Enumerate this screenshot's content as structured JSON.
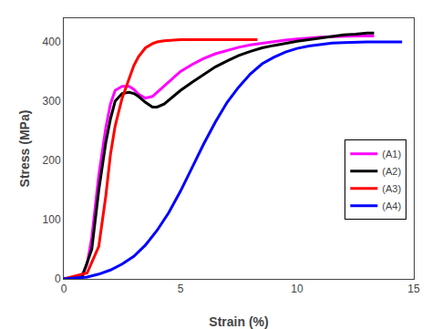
{
  "chart_data": {
    "type": "line",
    "xlabel": "Strain (%)",
    "ylabel": "Stress (MPa)",
    "xlim": [
      0,
      15
    ],
    "ylim": [
      0,
      440
    ],
    "xticks": [
      0,
      5,
      10,
      15
    ],
    "yticks": [
      0,
      100,
      200,
      300,
      400
    ],
    "grid": false,
    "legend": "right",
    "series": [
      {
        "name": "(A1)",
        "color": "#ff00ff",
        "x": [
          0,
          0.5,
          0.8,
          1.0,
          1.2,
          1.5,
          1.8,
          2.0,
          2.2,
          2.5,
          2.8,
          3.0,
          3.2,
          3.5,
          3.8,
          4.0,
          4.3,
          4.6,
          5.0,
          5.5,
          6.0,
          6.5,
          7.0,
          7.5,
          8.0,
          8.5,
          9.0,
          9.5,
          10.0,
          10.5,
          11.0,
          11.5,
          12.0,
          12.5,
          13.0,
          13.3
        ],
        "values": [
          0,
          2,
          8,
          25,
          70,
          175,
          255,
          295,
          318,
          325,
          325,
          320,
          312,
          305,
          308,
          315,
          325,
          337,
          350,
          362,
          372,
          380,
          386,
          391,
          395,
          398,
          401,
          403,
          405,
          407,
          408,
          409,
          410,
          410,
          410,
          410
        ]
      },
      {
        "name": "(A2)",
        "color": "#000000",
        "x": [
          0,
          0.8,
          1.2,
          1.5,
          1.8,
          2.0,
          2.2,
          2.5,
          2.8,
          3.0,
          3.2,
          3.5,
          3.8,
          4.0,
          4.3,
          4.6,
          5.0,
          5.5,
          6.0,
          6.5,
          7.0,
          7.5,
          8.0,
          8.5,
          9.0,
          9.5,
          10.0,
          10.5,
          11.0,
          11.5,
          12.0,
          12.5,
          13.0,
          13.3
        ],
        "values": [
          0,
          5,
          50,
          150,
          230,
          270,
          300,
          313,
          315,
          313,
          308,
          298,
          290,
          290,
          295,
          305,
          318,
          332,
          345,
          358,
          368,
          377,
          384,
          390,
          394,
          398,
          401,
          404,
          407,
          410,
          412,
          413,
          415,
          415
        ]
      },
      {
        "name": "(A3)",
        "color": "#ff0000",
        "x": [
          0,
          1.0,
          1.5,
          1.8,
          2.0,
          2.2,
          2.5,
          2.8,
          3.0,
          3.2,
          3.5,
          3.8,
          4.0,
          4.3,
          4.6,
          5.0,
          5.5,
          6.0,
          6.5,
          7.0,
          7.5,
          8.0,
          8.3
        ],
        "values": [
          0,
          10,
          55,
          140,
          210,
          258,
          305,
          340,
          360,
          375,
          390,
          397,
          400,
          402,
          403,
          404,
          404,
          404,
          404,
          404,
          404,
          404,
          404
        ]
      },
      {
        "name": "(A4)",
        "color": "#0000ff",
        "x": [
          0,
          1.0,
          1.5,
          2.0,
          2.5,
          3.0,
          3.5,
          4.0,
          4.5,
          5.0,
          5.5,
          6.0,
          6.5,
          7.0,
          7.5,
          8.0,
          8.5,
          9.0,
          9.5,
          10.0,
          10.5,
          11.0,
          11.5,
          12.0,
          12.5,
          13.0,
          13.5,
          14.0,
          14.5
        ],
        "values": [
          0,
          3,
          8,
          15,
          25,
          38,
          57,
          82,
          112,
          148,
          188,
          228,
          265,
          298,
          324,
          346,
          363,
          374,
          383,
          389,
          393,
          396,
          398,
          399,
          400,
          400,
          400,
          400,
          400
        ]
      }
    ]
  }
}
